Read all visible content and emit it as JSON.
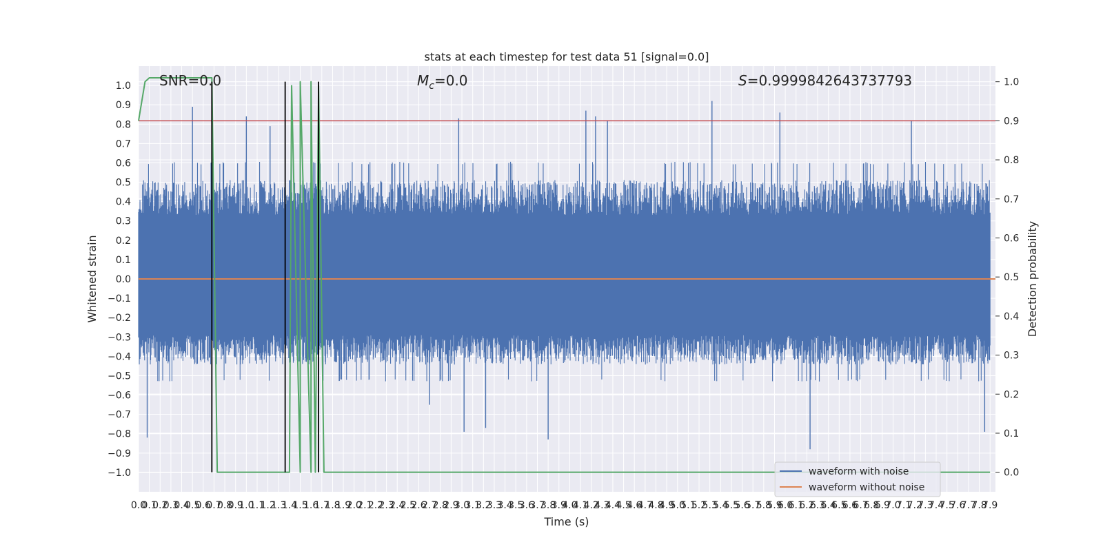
{
  "chart_data": {
    "type": "line",
    "title": "stats at each timestep for test data 51 [signal=0.0]",
    "xlabel": "Time (s)",
    "ylabel": "Whitened strain",
    "y2label": "Detection probability",
    "xlim": [
      0.0,
      7.95
    ],
    "ylim": [
      -1.1,
      1.1
    ],
    "y2lim": [
      -0.05,
      1.04
    ],
    "x_ticks": [
      "0.0",
      "0.1",
      "0.2",
      "0.3",
      "0.4",
      "0.5",
      "0.6",
      "0.7",
      "0.8",
      "0.9",
      "1.0",
      "1.1",
      "1.2",
      "1.3",
      "1.4",
      "1.5",
      "1.6",
      "1.7",
      "1.8",
      "1.9",
      "2.0",
      "2.1",
      "2.2",
      "2.3",
      "2.4",
      "2.5",
      "2.6",
      "2.7",
      "2.8",
      "2.9",
      "3.0",
      "3.1",
      "3.2",
      "3.3",
      "3.4",
      "3.5",
      "3.6",
      "3.7",
      "3.8",
      "3.9",
      "4.0",
      "4.1",
      "4.2",
      "4.3",
      "4.4",
      "4.5",
      "4.6",
      "4.7",
      "4.8",
      "4.9",
      "5.0",
      "5.1",
      "5.2",
      "5.3",
      "5.4",
      "5.5",
      "5.6",
      "5.7",
      "5.8",
      "5.9",
      "6.0",
      "6.1",
      "6.2",
      "6.3",
      "6.4",
      "6.5",
      "6.6",
      "6.7",
      "6.8",
      "6.9",
      "7.0",
      "7.1",
      "7.2",
      "7.3",
      "7.4",
      "7.5",
      "7.6",
      "7.7",
      "7.8",
      "7.9"
    ],
    "y_ticks": [
      "1.0",
      "0.9",
      "0.8",
      "0.7",
      "0.6",
      "0.5",
      "0.4",
      "0.3",
      "0.2",
      "0.1",
      "0.0",
      "−0.1",
      "−0.2",
      "−0.3",
      "−0.4",
      "−0.5",
      "−0.6",
      "−0.7",
      "−0.8",
      "−0.9",
      "−1.0"
    ],
    "y2_ticks": [
      "1.0",
      "0.9",
      "0.8",
      "0.7",
      "0.6",
      "0.5",
      "0.4",
      "0.3",
      "0.2",
      "0.1",
      "0.0"
    ],
    "annotations": {
      "snr": "SNR=0.0",
      "mc_symbol": "M",
      "mc_sub": "c",
      "mc_value": "=0.0",
      "s_symbol": "S",
      "s_value": "=0.9999842643737793"
    },
    "threshold": 0.9,
    "waveform_without_noise": 0.0,
    "waveform_with_noise_envelope": {
      "upper": 0.52,
      "lower": -0.45,
      "core_upper": 0.33,
      "core_lower": -0.29
    },
    "noise_peaks": [
      {
        "x": 0.08,
        "y": -0.82
      },
      {
        "x": 0.5,
        "y": 0.89
      },
      {
        "x": 0.68,
        "y": -0.65
      },
      {
        "x": 1.0,
        "y": 0.84
      },
      {
        "x": 1.22,
        "y": 0.79
      },
      {
        "x": 2.7,
        "y": -0.65
      },
      {
        "x": 2.97,
        "y": 0.83
      },
      {
        "x": 3.02,
        "y": -0.79
      },
      {
        "x": 3.22,
        "y": -0.77
      },
      {
        "x": 3.8,
        "y": -0.83
      },
      {
        "x": 4.15,
        "y": 0.87
      },
      {
        "x": 4.24,
        "y": 0.84
      },
      {
        "x": 4.35,
        "y": 0.82
      },
      {
        "x": 5.32,
        "y": 0.92
      },
      {
        "x": 5.95,
        "y": 0.86
      },
      {
        "x": 6.23,
        "y": -0.88
      },
      {
        "x": 7.17,
        "y": 0.82
      },
      {
        "x": 7.85,
        "y": -0.79
      }
    ],
    "detection_probability": {
      "x": [
        0.0,
        0.06,
        0.1,
        0.2,
        0.3,
        0.4,
        0.5,
        0.6,
        0.68,
        0.73,
        0.8,
        0.9,
        1.0,
        1.2,
        1.4,
        1.5,
        1.6,
        1.64,
        1.36,
        1.42,
        1.5,
        1.6,
        1.67,
        1.72,
        1.8,
        2.0,
        3.0,
        4.0,
        5.0,
        6.0,
        7.0,
        7.9
      ],
      "y": [
        0.9,
        1.0,
        1.01,
        1.01,
        1.01,
        1.01,
        1.01,
        1.01,
        1.01,
        0.0,
        0.0,
        0.0,
        0.0,
        0.0,
        0.0,
        0.0,
        0.0,
        0.0,
        0.0,
        0.99,
        1.0,
        1.0,
        0.99,
        0.0,
        0.0,
        0.0,
        0.0,
        0.0,
        0.0,
        0.0,
        0.0,
        0.0
      ]
    },
    "event_markers_x": [
      0.68,
      1.36,
      1.67
    ],
    "legend": {
      "placement": "lower-right",
      "entries": [
        "waveform with noise",
        "waveform without noise"
      ]
    },
    "colors": {
      "noise": "#4c72b0",
      "clean": "#dd8452",
      "probability": "#55a868",
      "threshold": "#c44e52",
      "markers": "#000000",
      "background": "#eaeaf2",
      "grid": "#ffffff"
    },
    "grid": true
  }
}
